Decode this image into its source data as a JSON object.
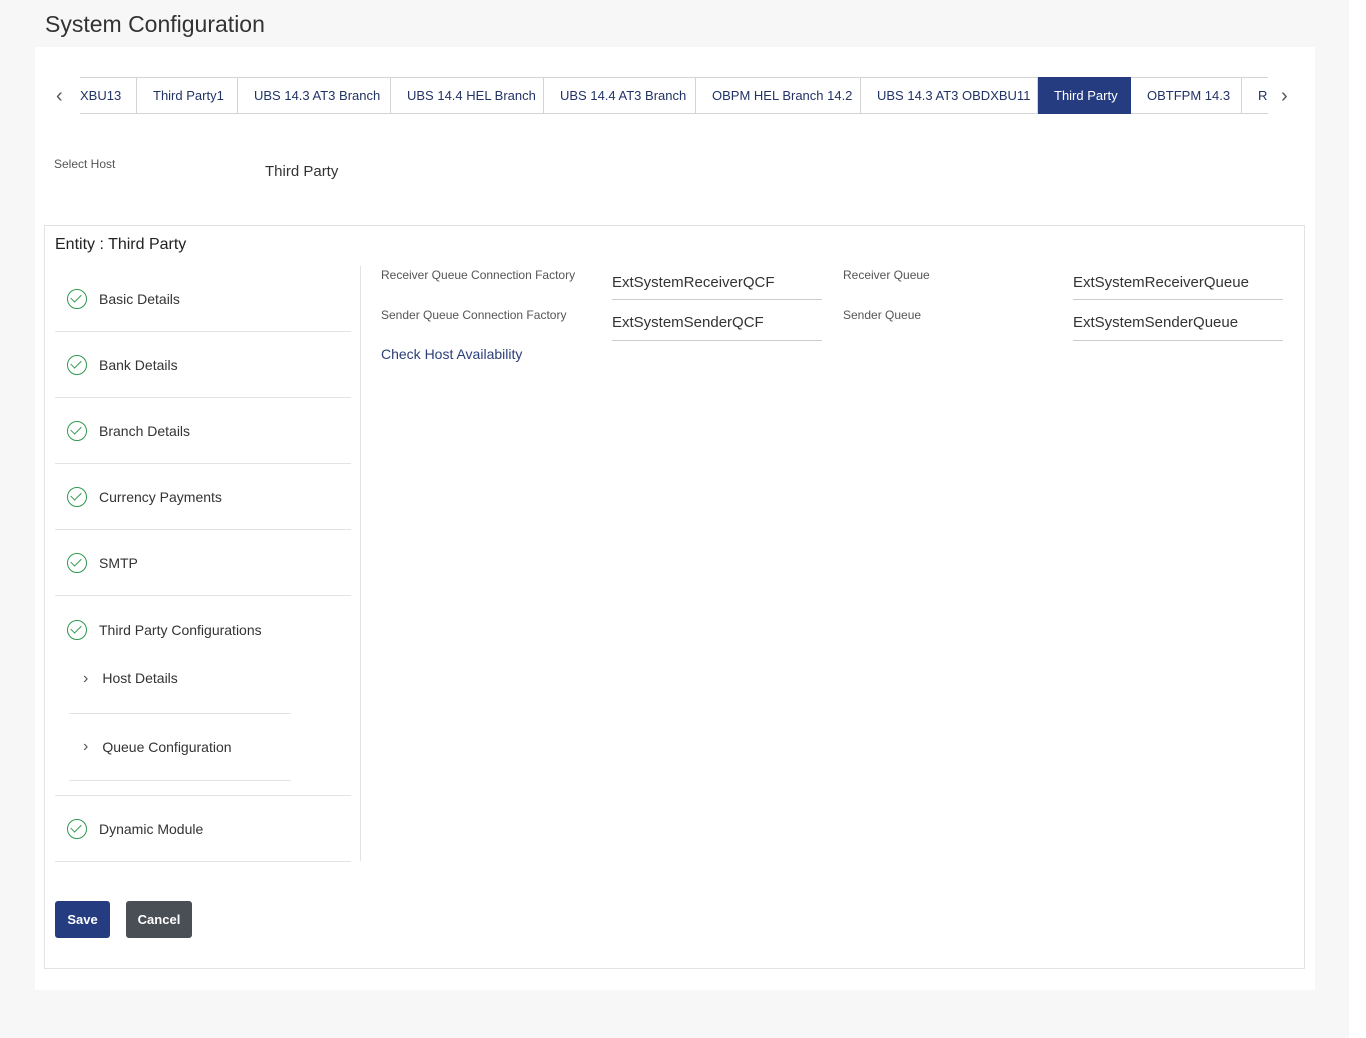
{
  "page_title": "System Configuration",
  "tabs": [
    {
      "label": "XBU13",
      "active": false
    },
    {
      "label": "Third Party1",
      "active": false
    },
    {
      "label": "UBS 14.3 AT3 Branch",
      "active": false
    },
    {
      "label": "UBS 14.4 HEL Branch",
      "active": false
    },
    {
      "label": "UBS 14.4 AT3 Branch",
      "active": false
    },
    {
      "label": "OBPM HEL Branch 14.2",
      "active": false
    },
    {
      "label": "UBS 14.3 AT3 OBDXBU11",
      "active": false
    },
    {
      "label": "Third Party",
      "active": true
    },
    {
      "label": "OBTFPM 14.3",
      "active": false
    },
    {
      "label": "RI",
      "active": false
    }
  ],
  "select_host": {
    "label": "Select Host",
    "value": "Third Party"
  },
  "entity_title": "Entity : Third Party",
  "sidebar": {
    "items": [
      {
        "label": "Basic Details"
      },
      {
        "label": "Bank Details"
      },
      {
        "label": "Branch Details"
      },
      {
        "label": "Currency Payments"
      },
      {
        "label": "SMTP"
      },
      {
        "label": "Third Party Configurations"
      },
      {
        "label": "Dynamic Module"
      }
    ],
    "sub_items": [
      {
        "label": "Host Details"
      },
      {
        "label": "Queue Configuration"
      }
    ]
  },
  "form": {
    "receiver_qcf": {
      "label": "Receiver Queue Connection Factory",
      "value": "ExtSystemReceiverQCF"
    },
    "sender_qcf": {
      "label": "Sender Queue Connection Factory",
      "value": "ExtSystemSenderQCF"
    },
    "receiver_queue": {
      "label": "Receiver Queue",
      "value": "ExtSystemReceiverQueue"
    },
    "sender_queue": {
      "label": "Sender Queue",
      "value": "ExtSystemSenderQueue"
    },
    "check_host": "Check Host Availability"
  },
  "buttons": {
    "save": "Save",
    "cancel": "Cancel"
  },
  "colors": {
    "primary": "#253c80",
    "cancel": "#4a4f55",
    "success": "#2e9a4e"
  }
}
